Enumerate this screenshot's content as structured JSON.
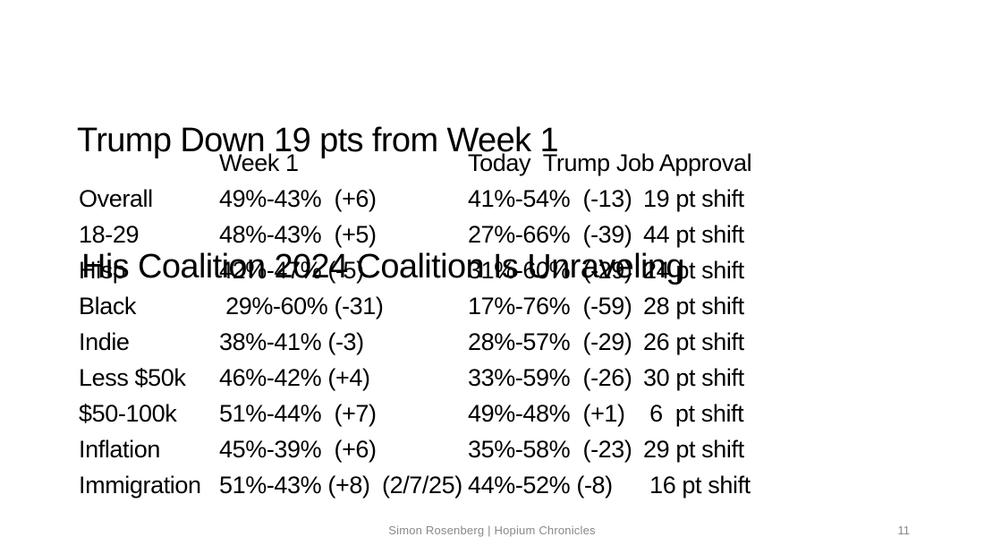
{
  "slide": {
    "title_line1": "Trump Down 19 pts from Week 1",
    "title_line2": "His Coalition 2024 Coalition Is Unraveling",
    "footer": "Simon Rosenberg | Hopium Chronicles",
    "page_number": "11",
    "background_color": "#ffffff",
    "text_color": "#000000",
    "footer_color": "#898989"
  },
  "table": {
    "header": {
      "week1": "Week 1",
      "today": "Today  Trump Job Approval"
    },
    "rows": [
      {
        "category": "Overall",
        "week1": "49%-43%  (+6)",
        "note": "",
        "today": "41%-54%  (-13)",
        "shift": "19 pt shift"
      },
      {
        "category": "18-29",
        "week1": "48%-43%  (+5)",
        "note": "",
        "today": "27%-66%  (-39)",
        "shift": "44 pt shift"
      },
      {
        "category": "Hisp",
        "week1": "42%-47% (-5)",
        "note": "",
        "today": "31%-60%  (-29)",
        "shift": "24 pt shift"
      },
      {
        "category": "Black",
        "week1": " 29%-60% (-31)",
        "note": "",
        "today": "17%-76%  (-59)",
        "shift": "28 pt shift"
      },
      {
        "category": "Indie",
        "week1": "38%-41% (-3)",
        "note": "",
        "today": "28%-57%  (-29)",
        "shift": "26 pt shift"
      },
      {
        "category": "Less $50k",
        "week1": "46%-42% (+4)",
        "note": "",
        "today": "33%-59%  (-26)",
        "shift": "30 pt shift"
      },
      {
        "category": "$50-100k",
        "week1": "51%-44%  (+7)",
        "note": "",
        "today": "49%-48%  (+1)",
        "shift": " 6  pt shift"
      },
      {
        "category": "Inflation",
        "week1": "45%-39%  (+6)",
        "note": "",
        "today": "35%-58%  (-23)",
        "shift": "29 pt shift"
      },
      {
        "category": "Immigration",
        "week1": "51%-43% (+8)",
        "note": "(2/7/25)",
        "today": "44%-52% (-8)",
        "shift": " 16 pt shift"
      }
    ]
  }
}
